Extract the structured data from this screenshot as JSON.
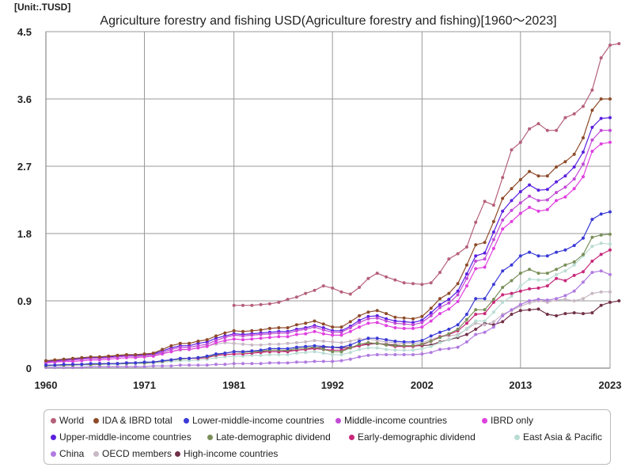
{
  "chart_data": {
    "type": "line",
    "title": "Agriculture forestry and fishing USD(Agriculture forestry and fishing)[1960～2023]",
    "unit_label": "[Unit:.TUSD]",
    "xlabel": "",
    "ylabel": "",
    "xlim": [
      1960,
      2023
    ],
    "ylim": [
      0,
      4.5
    ],
    "x_ticks": [
      "1960",
      "1971",
      "1981",
      "1992",
      "2002",
      "2013",
      "2023"
    ],
    "y_ticks": [
      "0",
      "0.9",
      "1.8",
      "2.7",
      "3.6",
      "4.5"
    ],
    "grid": true,
    "legend_position": "bottom",
    "series": [
      {
        "name": "World",
        "color": "#b5607a",
        "start": 1981,
        "values": [
          0.84,
          0.84,
          0.84,
          0.85,
          0.86,
          0.88,
          0.92,
          0.95,
          1.0,
          1.04,
          1.1,
          1.07,
          1.02,
          0.99,
          1.08,
          1.2,
          1.27,
          1.22,
          1.18,
          1.14,
          1.13,
          1.12,
          1.14,
          1.28,
          1.46,
          1.53,
          1.62,
          1.95,
          2.23,
          2.18,
          2.55,
          2.92,
          3.02,
          3.2,
          3.27,
          3.18,
          3.18,
          3.35,
          3.4,
          3.5,
          3.72,
          4.15,
          4.32,
          4.34
        ]
      },
      {
        "name": "IDA & IBRD total",
        "color": "#8e4b2a",
        "start": 1960,
        "values": [
          0.1,
          0.11,
          0.12,
          0.13,
          0.14,
          0.15,
          0.15,
          0.16,
          0.17,
          0.18,
          0.18,
          0.19,
          0.2,
          0.25,
          0.3,
          0.33,
          0.33,
          0.36,
          0.38,
          0.43,
          0.47,
          0.5,
          0.49,
          0.5,
          0.51,
          0.53,
          0.54,
          0.54,
          0.58,
          0.6,
          0.63,
          0.59,
          0.55,
          0.55,
          0.62,
          0.7,
          0.75,
          0.77,
          0.73,
          0.68,
          0.67,
          0.66,
          0.69,
          0.8,
          0.93,
          1.0,
          1.13,
          1.38,
          1.65,
          1.68,
          1.96,
          2.27,
          2.4,
          2.52,
          2.63,
          2.57,
          2.57,
          2.69,
          2.76,
          2.86,
          3.08,
          3.45,
          3.6,
          3.6
        ]
      },
      {
        "name": "Lower-middle-income countries",
        "color": "#3a3ad6",
        "start": 1960,
        "values": [
          0.04,
          0.04,
          0.05,
          0.05,
          0.05,
          0.06,
          0.06,
          0.06,
          0.06,
          0.07,
          0.07,
          0.08,
          0.08,
          0.1,
          0.11,
          0.13,
          0.13,
          0.14,
          0.16,
          0.19,
          0.2,
          0.22,
          0.22,
          0.23,
          0.24,
          0.26,
          0.26,
          0.26,
          0.28,
          0.29,
          0.3,
          0.29,
          0.28,
          0.28,
          0.31,
          0.36,
          0.4,
          0.4,
          0.38,
          0.36,
          0.35,
          0.35,
          0.37,
          0.43,
          0.48,
          0.52,
          0.58,
          0.72,
          0.93,
          0.93,
          1.12,
          1.3,
          1.38,
          1.5,
          1.55,
          1.5,
          1.5,
          1.55,
          1.58,
          1.64,
          1.74,
          1.99,
          2.06,
          2.09
        ]
      },
      {
        "name": "Middle-income countries",
        "color": "#c24ad6",
        "start": 1960,
        "values": [
          0.08,
          0.09,
          0.1,
          0.11,
          0.12,
          0.13,
          0.13,
          0.14,
          0.15,
          0.16,
          0.16,
          0.17,
          0.18,
          0.21,
          0.25,
          0.28,
          0.28,
          0.3,
          0.32,
          0.37,
          0.41,
          0.44,
          0.43,
          0.44,
          0.45,
          0.46,
          0.47,
          0.47,
          0.5,
          0.52,
          0.55,
          0.51,
          0.48,
          0.48,
          0.54,
          0.61,
          0.66,
          0.67,
          0.63,
          0.6,
          0.59,
          0.58,
          0.61,
          0.7,
          0.81,
          0.87,
          0.98,
          1.2,
          1.43,
          1.46,
          1.72,
          1.98,
          2.11,
          2.21,
          2.3,
          2.24,
          2.25,
          2.35,
          2.42,
          2.53,
          2.73,
          3.05,
          3.18,
          3.18
        ]
      },
      {
        "name": "IBRD only",
        "color": "#e040e0",
        "start": 1960,
        "values": [
          0.07,
          0.08,
          0.09,
          0.09,
          0.1,
          0.11,
          0.11,
          0.12,
          0.13,
          0.14,
          0.14,
          0.15,
          0.16,
          0.19,
          0.22,
          0.25,
          0.25,
          0.27,
          0.29,
          0.34,
          0.37,
          0.39,
          0.38,
          0.39,
          0.4,
          0.41,
          0.42,
          0.42,
          0.45,
          0.46,
          0.49,
          0.46,
          0.44,
          0.44,
          0.49,
          0.55,
          0.6,
          0.61,
          0.57,
          0.54,
          0.53,
          0.53,
          0.55,
          0.63,
          0.73,
          0.79,
          0.89,
          1.1,
          1.33,
          1.35,
          1.6,
          1.86,
          1.96,
          2.07,
          2.15,
          2.1,
          2.12,
          2.24,
          2.29,
          2.4,
          2.56,
          2.9,
          3.0,
          3.02
        ]
      },
      {
        "name": "Upper-middle-income countries",
        "color": "#5a20e0",
        "start": 1960,
        "values": [
          0.09,
          0.1,
          0.11,
          0.12,
          0.13,
          0.14,
          0.14,
          0.15,
          0.16,
          0.17,
          0.17,
          0.18,
          0.19,
          0.23,
          0.27,
          0.3,
          0.3,
          0.33,
          0.35,
          0.4,
          0.43,
          0.46,
          0.45,
          0.46,
          0.47,
          0.48,
          0.49,
          0.49,
          0.52,
          0.54,
          0.57,
          0.54,
          0.5,
          0.5,
          0.56,
          0.64,
          0.69,
          0.7,
          0.66,
          0.63,
          0.62,
          0.61,
          0.64,
          0.74,
          0.85,
          0.92,
          1.03,
          1.26,
          1.5,
          1.54,
          1.82,
          2.1,
          2.24,
          2.36,
          2.45,
          2.38,
          2.39,
          2.49,
          2.57,
          2.69,
          2.89,
          3.22,
          3.34,
          3.35
        ]
      },
      {
        "name": "Late-demographic dividend",
        "color": "#7a8f5a",
        "start": 1960,
        "values": [
          0.03,
          0.04,
          0.04,
          0.04,
          0.05,
          0.05,
          0.05,
          0.06,
          0.06,
          0.06,
          0.07,
          0.07,
          0.08,
          0.09,
          0.11,
          0.12,
          0.13,
          0.14,
          0.15,
          0.18,
          0.2,
          0.22,
          0.21,
          0.22,
          0.23,
          0.24,
          0.24,
          0.24,
          0.26,
          0.27,
          0.28,
          0.25,
          0.22,
          0.22,
          0.27,
          0.32,
          0.34,
          0.33,
          0.31,
          0.3,
          0.3,
          0.3,
          0.32,
          0.36,
          0.41,
          0.46,
          0.52,
          0.65,
          0.78,
          0.78,
          0.92,
          1.08,
          1.17,
          1.27,
          1.32,
          1.27,
          1.27,
          1.32,
          1.38,
          1.42,
          1.52,
          1.75,
          1.78,
          1.79
        ]
      },
      {
        "name": "Early-demographic dividend",
        "color": "#c8287a",
        "start": 1960,
        "values": [
          0.04,
          0.04,
          0.04,
          0.05,
          0.05,
          0.05,
          0.06,
          0.06,
          0.06,
          0.07,
          0.07,
          0.07,
          0.08,
          0.09,
          0.11,
          0.12,
          0.13,
          0.13,
          0.14,
          0.17,
          0.18,
          0.19,
          0.19,
          0.2,
          0.21,
          0.22,
          0.22,
          0.22,
          0.24,
          0.25,
          0.26,
          0.25,
          0.24,
          0.24,
          0.27,
          0.3,
          0.33,
          0.33,
          0.31,
          0.29,
          0.29,
          0.29,
          0.31,
          0.36,
          0.42,
          0.45,
          0.5,
          0.6,
          0.72,
          0.73,
          0.88,
          0.98,
          1.0,
          1.03,
          1.06,
          1.07,
          1.1,
          1.2,
          1.17,
          1.24,
          1.29,
          1.43,
          1.52,
          1.58
        ]
      },
      {
        "name": "East Asia & Pacific",
        "color": "#b9dcd2",
        "start": 1960,
        "values": [
          0.03,
          0.03,
          0.03,
          0.04,
          0.04,
          0.04,
          0.05,
          0.05,
          0.05,
          0.06,
          0.06,
          0.06,
          0.07,
          0.08,
          0.09,
          0.1,
          0.1,
          0.11,
          0.12,
          0.14,
          0.15,
          0.16,
          0.16,
          0.17,
          0.17,
          0.18,
          0.18,
          0.18,
          0.2,
          0.21,
          0.22,
          0.2,
          0.18,
          0.18,
          0.21,
          0.25,
          0.27,
          0.27,
          0.25,
          0.24,
          0.24,
          0.24,
          0.26,
          0.29,
          0.34,
          0.38,
          0.43,
          0.53,
          0.63,
          0.63,
          0.75,
          0.88,
          0.96,
          1.1,
          1.19,
          1.18,
          1.18,
          1.25,
          1.3,
          1.38,
          1.5,
          1.63,
          1.67,
          1.66
        ]
      },
      {
        "name": "China",
        "color": "#b07ae0",
        "start": 1960,
        "values": [
          0.01,
          0.01,
          0.01,
          0.01,
          0.01,
          0.02,
          0.02,
          0.02,
          0.02,
          0.02,
          0.02,
          0.02,
          0.03,
          0.03,
          0.03,
          0.04,
          0.04,
          0.04,
          0.04,
          0.05,
          0.05,
          0.06,
          0.06,
          0.06,
          0.06,
          0.07,
          0.07,
          0.07,
          0.08,
          0.08,
          0.09,
          0.09,
          0.09,
          0.1,
          0.12,
          0.15,
          0.17,
          0.18,
          0.18,
          0.18,
          0.18,
          0.18,
          0.19,
          0.21,
          0.25,
          0.26,
          0.28,
          0.35,
          0.45,
          0.48,
          0.55,
          0.7,
          0.78,
          0.85,
          0.9,
          0.92,
          0.91,
          0.93,
          0.97,
          1.03,
          1.15,
          1.28,
          1.3,
          1.25
        ]
      },
      {
        "name": "OECD members",
        "color": "#c8b8c4",
        "start": 1970,
        "values": [
          0.15,
          0.16,
          0.17,
          0.2,
          0.22,
          0.24,
          0.25,
          0.27,
          0.3,
          0.32,
          0.34,
          0.33,
          0.32,
          0.31,
          0.31,
          0.32,
          0.32,
          0.33,
          0.34,
          0.35,
          0.37,
          0.36,
          0.35,
          0.34,
          0.36,
          0.39,
          0.39,
          0.37,
          0.35,
          0.34,
          0.33,
          0.33,
          0.34,
          0.38,
          0.42,
          0.43,
          0.45,
          0.52,
          0.6,
          0.58,
          0.62,
          0.72,
          0.77,
          0.83,
          0.87,
          0.9,
          0.88,
          0.91,
          0.92,
          0.9,
          0.93,
          1.0,
          1.02,
          1.02
        ]
      },
      {
        "name": "High-income countries",
        "color": "#703048",
        "start": 1981,
        "values": [
          0.22,
          0.22,
          0.22,
          0.22,
          0.22,
          0.22,
          0.23,
          0.24,
          0.25,
          0.27,
          0.28,
          0.28,
          0.27,
          0.28,
          0.3,
          0.32,
          0.33,
          0.32,
          0.31,
          0.3,
          0.3,
          0.3,
          0.31,
          0.35,
          0.38,
          0.41,
          0.45,
          0.52,
          0.6,
          0.58,
          0.62,
          0.72,
          0.77,
          0.78,
          0.79,
          0.72,
          0.7,
          0.73,
          0.74,
          0.73,
          0.74,
          0.84,
          0.88,
          0.9
        ]
      }
    ]
  }
}
